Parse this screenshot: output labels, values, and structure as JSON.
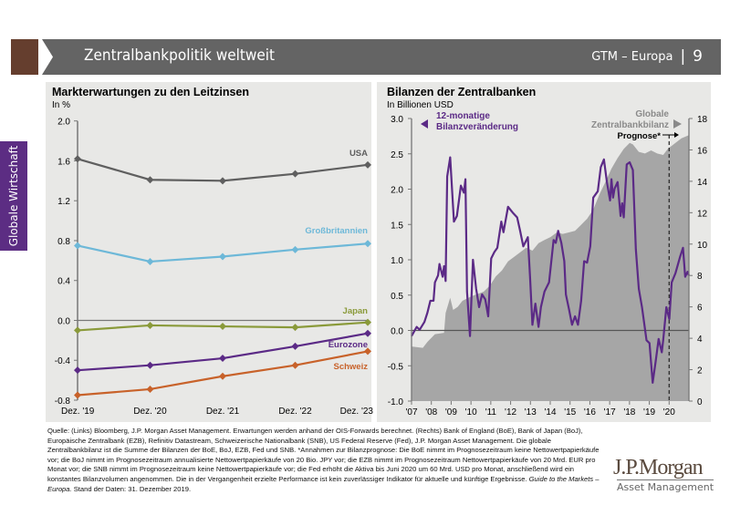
{
  "header": {
    "title": "Zentralbankpolitik weltweit",
    "series": "GTM – Europa",
    "separator": "|",
    "page": "9"
  },
  "sidebar": {
    "label": "Globale Wirtschaft"
  },
  "colors": {
    "brand_brown": "#653e2e",
    "header_grey": "#646464",
    "sidebar_purple": "#5c2d83",
    "usa": "#5f5f5f",
    "uk": "#6db8d8",
    "japan": "#8a9a3a",
    "eurozone": "#5b2a86",
    "schweiz": "#c8622a",
    "area": "#a6a6a6",
    "line": "#5b2a86"
  },
  "chart_data": [
    {
      "type": "line",
      "title": "Markterwartungen zu den Leitzinsen",
      "ylabel": "In %",
      "ylim": [
        -0.8,
        2.0
      ],
      "yticks": [
        "2.0",
        "1.6",
        "1.2",
        "0.8",
        "0.4",
        "0.0",
        "-0.4",
        "-0.8"
      ],
      "categories": [
        "Dez. '19",
        "Dez. '20",
        "Dez. '21",
        "Dez. '22",
        "Dez. '23"
      ],
      "series": [
        {
          "name": "USA",
          "values": [
            1.62,
            1.41,
            1.4,
            1.47,
            1.56
          ]
        },
        {
          "name": "Großbritannien",
          "values": [
            0.75,
            0.59,
            0.64,
            0.71,
            0.77
          ]
        },
        {
          "name": "Japan",
          "values": [
            -0.1,
            -0.05,
            -0.06,
            -0.07,
            -0.02
          ]
        },
        {
          "name": "Eurozone",
          "values": [
            -0.5,
            -0.45,
            -0.38,
            -0.26,
            -0.13
          ]
        },
        {
          "name": "Schweiz",
          "values": [
            -0.75,
            -0.69,
            -0.56,
            -0.45,
            -0.31
          ]
        }
      ]
    },
    {
      "type": "line+area",
      "title": "Bilanzen der Zentralbanken",
      "ylabel": "In Billionen USD",
      "ylim_left": [
        -1.0,
        3.0
      ],
      "ylim_right": [
        0,
        18
      ],
      "xlim": [
        2007,
        2021
      ],
      "yticks_left": [
        "3.0",
        "2.5",
        "2.0",
        "1.5",
        "1.0",
        "0.5",
        "0.0",
        "-0.5",
        "-1.0"
      ],
      "yticks_right": [
        "18",
        "16",
        "14",
        "12",
        "10",
        "8",
        "6",
        "4",
        "2",
        "0"
      ],
      "xticks": [
        "'07",
        "'08",
        "'09",
        "'10",
        "'11",
        "'12",
        "'13",
        "'14",
        "'15",
        "'16",
        "'17",
        "'18",
        "'19",
        "'20"
      ],
      "line_label": "12-monatige Bilanzveränderung",
      "area_label": "Globale Zentralbankbilanz",
      "forecast_label": "Prognose*",
      "forecast_start": 2020.0,
      "line_series": [
        [
          2007.0,
          -0.08
        ],
        [
          2007.26,
          0.05
        ],
        [
          2007.41,
          0.01
        ],
        [
          2007.65,
          0.12
        ],
        [
          2007.8,
          0.25
        ],
        [
          2007.95,
          0.42
        ],
        [
          2008.11,
          0.42
        ],
        [
          2008.18,
          0.68
        ],
        [
          2008.34,
          0.78
        ],
        [
          2008.41,
          0.94
        ],
        [
          2008.57,
          0.76
        ],
        [
          2008.64,
          0.91
        ],
        [
          2008.72,
          0.7
        ],
        [
          2008.8,
          2.18
        ],
        [
          2008.95,
          2.45
        ],
        [
          2009.14,
          1.54
        ],
        [
          2009.29,
          1.62
        ],
        [
          2009.49,
          2.05
        ],
        [
          2009.64,
          1.95
        ],
        [
          2009.72,
          2.14
        ],
        [
          2009.8,
          0.55
        ],
        [
          2009.95,
          -0.08
        ],
        [
          2010.1,
          1.0
        ],
        [
          2010.26,
          0.59
        ],
        [
          2010.41,
          0.33
        ],
        [
          2010.56,
          0.51
        ],
        [
          2010.72,
          0.44
        ],
        [
          2010.87,
          0.2
        ],
        [
          2011.02,
          1.02
        ],
        [
          2011.18,
          1.11
        ],
        [
          2011.33,
          1.17
        ],
        [
          2011.53,
          1.54
        ],
        [
          2011.64,
          1.39
        ],
        [
          2011.87,
          1.75
        ],
        [
          2012.1,
          1.67
        ],
        [
          2012.33,
          1.6
        ],
        [
          2012.48,
          1.41
        ],
        [
          2012.64,
          1.19
        ],
        [
          2012.87,
          1.32
        ],
        [
          2012.98,
          0.76
        ],
        [
          2013.1,
          0.08
        ],
        [
          2013.25,
          0.38
        ],
        [
          2013.41,
          0.05
        ],
        [
          2013.53,
          0.33
        ],
        [
          2013.71,
          0.55
        ],
        [
          2013.94,
          0.68
        ],
        [
          2014.17,
          1.28
        ],
        [
          2014.28,
          1.24
        ],
        [
          2014.4,
          1.41
        ],
        [
          2014.56,
          1.24
        ],
        [
          2014.71,
          0.98
        ],
        [
          2014.79,
          0.51
        ],
        [
          2014.94,
          0.31
        ],
        [
          2015.1,
          0.08
        ],
        [
          2015.25,
          0.2
        ],
        [
          2015.4,
          0.08
        ],
        [
          2015.56,
          0.42
        ],
        [
          2015.71,
          0.98
        ],
        [
          2015.86,
          0.96
        ],
        [
          2016.02,
          1.19
        ],
        [
          2016.17,
          1.88
        ],
        [
          2016.4,
          1.97
        ],
        [
          2016.55,
          2.31
        ],
        [
          2016.71,
          2.42
        ],
        [
          2016.86,
          2.1
        ],
        [
          2017.02,
          1.84
        ],
        [
          2017.09,
          2.14
        ],
        [
          2017.17,
          1.88
        ],
        [
          2017.25,
          2.01
        ],
        [
          2017.4,
          2.1
        ],
        [
          2017.55,
          1.62
        ],
        [
          2017.63,
          1.8
        ],
        [
          2017.71,
          1.6
        ],
        [
          2017.86,
          2.35
        ],
        [
          2018.01,
          2.38
        ],
        [
          2018.17,
          2.27
        ],
        [
          2018.32,
          1.15
        ],
        [
          2018.47,
          0.59
        ],
        [
          2018.63,
          0.33
        ],
        [
          2018.86,
          -0.14
        ],
        [
          2019.01,
          -0.18
        ],
        [
          2019.17,
          -0.74
        ],
        [
          2019.32,
          -0.44
        ],
        [
          2019.47,
          -0.12
        ],
        [
          2019.63,
          -0.31
        ],
        [
          2019.7,
          -0.14
        ],
        [
          2019.86,
          0.33
        ],
        [
          2020.01,
          0.16
        ],
        [
          2020.13,
          0.68
        ],
        [
          2020.32,
          0.81
        ],
        [
          2020.55,
          1.04
        ],
        [
          2020.7,
          1.17
        ],
        [
          2020.81,
          0.76
        ],
        [
          2020.93,
          0.83
        ],
        [
          2021.0,
          0.78
        ]
      ],
      "area_series": [
        [
          2007.0,
          3.48
        ],
        [
          2007.57,
          3.39
        ],
        [
          2007.8,
          3.77
        ],
        [
          2008.18,
          4.26
        ],
        [
          2008.64,
          4.35
        ],
        [
          2008.72,
          5.61
        ],
        [
          2008.95,
          6.58
        ],
        [
          2009.1,
          5.81
        ],
        [
          2009.33,
          6.0
        ],
        [
          2009.57,
          6.39
        ],
        [
          2010.03,
          6.68
        ],
        [
          2010.64,
          6.97
        ],
        [
          2010.95,
          7.35
        ],
        [
          2011.25,
          7.94
        ],
        [
          2011.56,
          8.32
        ],
        [
          2011.87,
          8.9
        ],
        [
          2012.18,
          9.19
        ],
        [
          2012.79,
          9.77
        ],
        [
          2013.1,
          9.58
        ],
        [
          2013.41,
          10.06
        ],
        [
          2013.71,
          10.26
        ],
        [
          2014.02,
          10.45
        ],
        [
          2014.33,
          10.74
        ],
        [
          2014.63,
          10.65
        ],
        [
          2015.25,
          10.84
        ],
        [
          2015.56,
          11.23
        ],
        [
          2015.86,
          11.61
        ],
        [
          2016.17,
          12.19
        ],
        [
          2016.48,
          13.16
        ],
        [
          2016.78,
          13.94
        ],
        [
          2017.09,
          14.81
        ],
        [
          2017.4,
          15.48
        ],
        [
          2017.71,
          16.06
        ],
        [
          2018.01,
          16.45
        ],
        [
          2018.17,
          16.35
        ],
        [
          2018.47,
          15.87
        ],
        [
          2018.78,
          15.77
        ],
        [
          2019.09,
          15.97
        ],
        [
          2019.4,
          15.77
        ],
        [
          2019.7,
          15.68
        ],
        [
          2019.93,
          16.06
        ],
        [
          2020.32,
          16.45
        ],
        [
          2020.62,
          16.74
        ],
        [
          2021.0,
          16.94
        ]
      ]
    }
  ],
  "footer": {
    "text": "Quelle: (Links) Bloomberg, J.P. Morgan Asset Management. Erwartungen werden anhand der OIS-Forwards berechnet. (Rechts) Bank of England (BoE), Bank of Japan (BoJ), Europäische Zentralbank (EZB), Refinitiv Datastream, Schweizerische Nationalbank (SNB), US Federal Reserve (Fed), J.P. Morgan Asset Management. Die globale Zentralbankbilanz ist die Summe der Bilanzen der BoE, BoJ, EZB, Fed und SNB. *Annahmen zur Bilanzprognose: Die BoE nimmt im Prognosezeitraum keine Nettowertpapierkäufe vor; die BoJ nimmt im Prognosezeitraum annualisierte Nettowertpapierkäufe von 20 Bio. JPY vor; die EZB nimmt im Prognosezeitraum Nettowertpapierkäufe von 20 Mrd. EUR pro Monat vor; die SNB nimmt im Prognosezeitraum keine Nettowertpapierkäufe vor; die Fed erhöht die Aktiva bis Juni 2020 um 60 Mrd. USD pro Monat, anschließend wird ein konstantes Bilanzvolumen angenommen. Die in der Vergangenheit erzielte Performance ist kein zuverlässiger Indikator für aktuelle und künftige Ergebnisse. ",
    "italic": "Guide to the Markets – Europa.",
    "tail": " Stand der Daten: 31. Dezember 2019."
  },
  "logo": {
    "line1": "J.P.Morgan",
    "line2": "Asset Management"
  }
}
